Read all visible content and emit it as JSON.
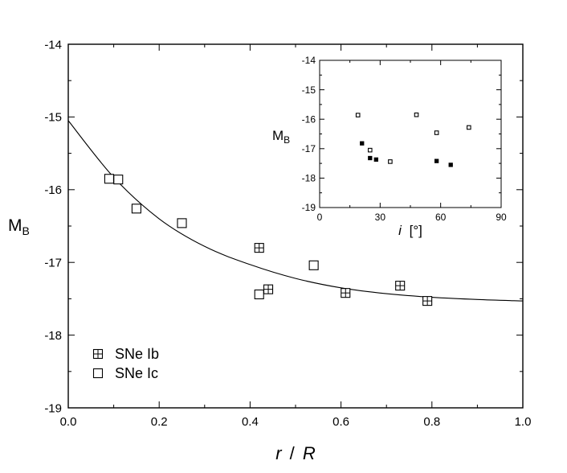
{
  "chart_data": [
    {
      "type": "scatter",
      "xlabel_parts": [
        "r",
        "/",
        "R"
      ],
      "ylabel": "M",
      "ylabel_sub": "B",
      "xlim": [
        0.0,
        1.0
      ],
      "ylim": [
        -19,
        -14
      ],
      "y_inverted": true,
      "xticks": [
        0.0,
        0.2,
        0.4,
        0.6,
        0.8,
        1.0
      ],
      "xtick_labels": [
        "0.0",
        "0.2",
        "0.4",
        "0.6",
        "0.8",
        "1.0"
      ],
      "yticks": [
        -14,
        -15,
        -16,
        -17,
        -18,
        -19
      ],
      "ytick_labels": [
        "-14",
        "-15",
        "-16",
        "-17",
        "-18",
        "-19"
      ],
      "legend_position": "bottom-left",
      "series": [
        {
          "name": "SNe Ib",
          "marker": "square-plus",
          "points": [
            {
              "x": 0.42,
              "y": -16.8
            },
            {
              "x": 0.44,
              "y": -17.37
            },
            {
              "x": 0.61,
              "y": -17.42
            },
            {
              "x": 0.73,
              "y": -17.32
            },
            {
              "x": 0.79,
              "y": -17.53
            }
          ]
        },
        {
          "name": "SNe Ic",
          "marker": "open-square",
          "points": [
            {
              "x": 0.09,
              "y": -15.85
            },
            {
              "x": 0.11,
              "y": -15.86
            },
            {
              "x": 0.15,
              "y": -16.26
            },
            {
              "x": 0.25,
              "y": -16.46
            },
            {
              "x": 0.42,
              "y": -17.44
            },
            {
              "x": 0.54,
              "y": -17.04
            }
          ]
        }
      ],
      "fit_curve": [
        {
          "x": 0.0,
          "y": -15.05
        },
        {
          "x": 0.1,
          "y": -15.83
        },
        {
          "x": 0.2,
          "y": -16.4
        },
        {
          "x": 0.3,
          "y": -16.78
        },
        {
          "x": 0.4,
          "y": -17.03
        },
        {
          "x": 0.5,
          "y": -17.22
        },
        {
          "x": 0.6,
          "y": -17.35
        },
        {
          "x": 0.7,
          "y": -17.43
        },
        {
          "x": 0.8,
          "y": -17.48
        },
        {
          "x": 0.9,
          "y": -17.51
        },
        {
          "x": 1.0,
          "y": -17.53
        }
      ]
    },
    {
      "type": "scatter",
      "xlabel_parts": [
        "i",
        "[°]"
      ],
      "ylabel": "M",
      "ylabel_sub": "B",
      "xlim": [
        0,
        90
      ],
      "ylim": [
        -19,
        -14
      ],
      "y_inverted": true,
      "xticks": [
        0,
        30,
        60,
        90
      ],
      "xtick_labels": [
        "0",
        "30",
        "60",
        "90"
      ],
      "yticks": [
        -14,
        -15,
        -16,
        -17,
        -18,
        -19
      ],
      "ytick_labels": [
        "-14",
        "-15",
        "-16",
        "-17",
        "-18",
        "-19"
      ],
      "series": [
        {
          "marker": "filled-square",
          "points": [
            {
              "x": 21,
              "y": -16.82
            },
            {
              "x": 25,
              "y": -17.32
            },
            {
              "x": 28,
              "y": -17.37
            },
            {
              "x": 58,
              "y": -17.42
            },
            {
              "x": 65,
              "y": -17.55
            }
          ]
        },
        {
          "marker": "open-square",
          "points": [
            {
              "x": 19,
              "y": -15.86
            },
            {
              "x": 25,
              "y": -17.05
            },
            {
              "x": 35,
              "y": -17.44
            },
            {
              "x": 48,
              "y": -15.85
            },
            {
              "x": 58,
              "y": -16.46
            },
            {
              "x": 74,
              "y": -16.28
            }
          ]
        }
      ]
    }
  ]
}
